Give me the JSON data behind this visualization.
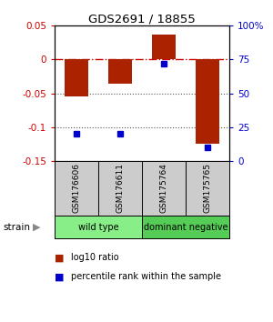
{
  "title": "GDS2691 / 18855",
  "samples": [
    "GSM176606",
    "GSM176611",
    "GSM175764",
    "GSM175765"
  ],
  "log10_ratio": [
    -0.055,
    -0.035,
    0.037,
    -0.125
  ],
  "percentile_rank": [
    0.2,
    0.2,
    0.72,
    0.1
  ],
  "ylim": [
    -0.15,
    0.05
  ],
  "left_yticks": [
    -0.15,
    -0.1,
    -0.05,
    0.0,
    0.05
  ],
  "left_yticklabels": [
    "-0.15",
    "-0.1",
    "-0.05",
    "0",
    "0.05"
  ],
  "right_yticks": [
    0.0,
    0.25,
    0.5,
    0.75,
    1.0
  ],
  "right_yticklabels": [
    "0",
    "25",
    "50",
    "75",
    "100%"
  ],
  "bar_color": "#aa2200",
  "dot_color": "#0000cc",
  "bar_width": 0.55,
  "groups": [
    {
      "label": "wild type",
      "samples": [
        0,
        1
      ],
      "color": "#88ee88"
    },
    {
      "label": "dominant negative",
      "samples": [
        2,
        3
      ],
      "color": "#55cc55"
    }
  ],
  "strain_label": "strain",
  "legend_bar_label": "log10 ratio",
  "legend_dot_label": "percentile rank within the sample",
  "hline_0_color": "#cc0000",
  "hline_dot_color": "#555555",
  "bg_color": "#ffffff"
}
